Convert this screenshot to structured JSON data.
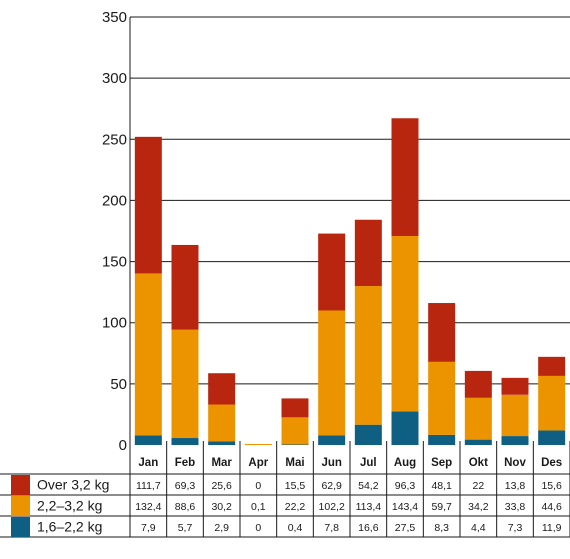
{
  "chart_data": {
    "type": "bar",
    "stacked": true,
    "title": "",
    "xlabel": "",
    "ylabel": "",
    "ylim": [
      0,
      350
    ],
    "yticks": [
      0,
      50,
      100,
      150,
      200,
      250,
      300,
      350
    ],
    "grid": true,
    "categories": [
      "Jan",
      "Feb",
      "Mar",
      "Apr",
      "Mai",
      "Jun",
      "Jul",
      "Aug",
      "Sep",
      "Okt",
      "Nov",
      "Des"
    ],
    "series": [
      {
        "name": "1,6–2,2 kg",
        "color": "#0e5f82",
        "values": [
          7.9,
          5.7,
          2.9,
          0,
          0.4,
          7.8,
          16.6,
          27.5,
          8.3,
          4.4,
          7.3,
          11.9
        ],
        "labels": [
          "7,9",
          "5,7",
          "2,9",
          "0",
          "0,4",
          "7,8",
          "16,6",
          "27,5",
          "8,3",
          "4,4",
          "7,3",
          "11,9"
        ]
      },
      {
        "name": "2,2–3,2 kg",
        "color": "#ec9400",
        "values": [
          132.4,
          88.6,
          30.2,
          0.1,
          22.2,
          102.2,
          113.4,
          143.4,
          59.7,
          34.2,
          33.8,
          44.6
        ],
        "labels": [
          "132,4",
          "88,6",
          "30,2",
          "0,1",
          "22,2",
          "102,2",
          "113,4",
          "143,4",
          "59,7",
          "34,2",
          "33,8",
          "44,6"
        ]
      },
      {
        "name": "Over 3,2 kg",
        "color": "#b8260f",
        "values": [
          111.7,
          69.3,
          25.6,
          0,
          15.5,
          62.9,
          54.2,
          96.3,
          48.1,
          22,
          13.8,
          15.6
        ],
        "labels": [
          "111,7",
          "69,3",
          "25,6",
          "0",
          "15,5",
          "62,9",
          "54,2",
          "96,3",
          "48,1",
          "22",
          "13,8",
          "15,6"
        ]
      }
    ],
    "table_row_order": [
      "Over 3,2 kg",
      "2,2–3,2 kg",
      "1,6–2,2 kg"
    ],
    "legend": "table-left"
  }
}
